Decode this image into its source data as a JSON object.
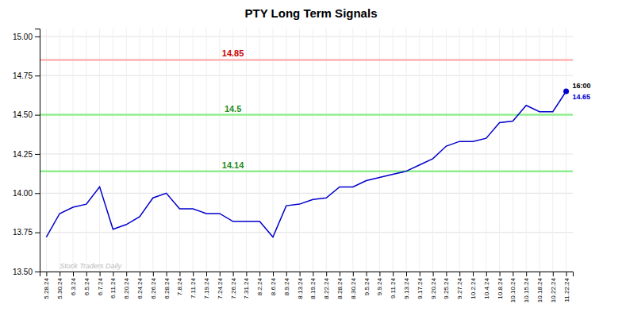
{
  "chart_data": {
    "type": "line",
    "title": "PTY Long Term Signals",
    "categories": [
      "5.28.24",
      "5.30.24",
      "6.3.24",
      "6.5.24",
      "6.7.24",
      "6.11.24",
      "6.20.24",
      "6.24.24",
      "6.26.24",
      "6.28.24",
      "7.8.24",
      "7.11.24",
      "7.19.24",
      "7.24.24",
      "7.26.24",
      "7.31.24",
      "8.2.24",
      "8.6.24",
      "8.9.24",
      "8.13.24",
      "8.19.24",
      "8.22.24",
      "8.28.24",
      "8.30.24",
      "9.5.24",
      "9.9.24",
      "9.11.24",
      "9.13.24",
      "9.17.24",
      "9.20.24",
      "9.25.24",
      "9.27.24",
      "10.2.24",
      "10.4.24",
      "10.8.24",
      "10.10.24",
      "10.15.24",
      "10.18.24",
      "10.22.24",
      "11.22.24"
    ],
    "values": [
      13.72,
      13.87,
      13.91,
      13.93,
      14.04,
      13.77,
      13.8,
      13.85,
      13.97,
      14.0,
      13.9,
      13.9,
      13.87,
      13.87,
      13.82,
      13.82,
      13.82,
      13.72,
      13.92,
      13.93,
      13.96,
      13.97,
      14.04,
      14.04,
      14.08,
      14.1,
      14.12,
      14.14,
      14.18,
      14.22,
      14.3,
      14.33,
      14.33,
      14.35,
      14.45,
      14.46,
      14.56,
      14.52,
      14.52,
      14.65
    ],
    "color": "#0000cc",
    "hlines": [
      {
        "value": 14.85,
        "label": "14.85",
        "color": "#ffb3b3",
        "label_color": "#cc0000"
      },
      {
        "value": 14.5,
        "label": "14.5",
        "color": "#90ee90",
        "label_color": "#228B22"
      },
      {
        "value": 14.14,
        "label": "14.14",
        "color": "#90ee90",
        "label_color": "#228B22"
      }
    ],
    "end_labels": [
      {
        "text": "16:00",
        "color": "#000000"
      },
      {
        "text": "14.65",
        "color": "#0000cc"
      }
    ],
    "watermark": {
      "text": "Stock Traders Daily",
      "color": "#bbbbbb"
    },
    "ylim": [
      13.5,
      15.05
    ],
    "yticks": [
      {
        "value": 13.5,
        "label": "13.50"
      },
      13.75,
      {
        "value": 14.0,
        "label": "14.00"
      },
      14.25,
      {
        "value": 14.5,
        "label": "14.50"
      },
      14.75,
      {
        "value": 15.0,
        "label": "15.00"
      }
    ],
    "grid": true
  }
}
